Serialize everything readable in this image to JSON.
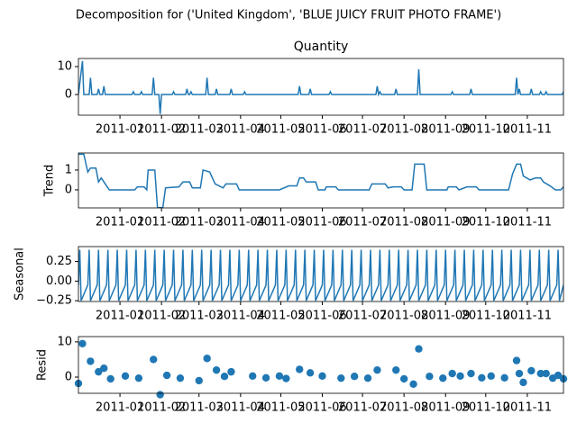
{
  "title": "Decomposition for ('United Kingdom', 'BLUE JUICY FRUIT PHOTO FRAME')",
  "chart_data": [
    {
      "type": "line",
      "title": "Quantity",
      "color": "#1f77b4",
      "xlim": [
        "2010-12-01",
        "2011-11-28"
      ],
      "xticks": [
        {
          "value": "2011-01-01",
          "label": "2011-01"
        },
        {
          "value": "2011-02-01",
          "label": "2011-02"
        },
        {
          "value": "2011-03-01",
          "label": "2011-03"
        },
        {
          "value": "2011-04-01",
          "label": "2011-04"
        },
        {
          "value": "2011-05-01",
          "label": "2011-05"
        },
        {
          "value": "2011-06-01",
          "label": "2011-06"
        },
        {
          "value": "2011-07-01",
          "label": "2011-07"
        },
        {
          "value": "2011-08-01",
          "label": "2011-08"
        },
        {
          "value": "2011-09-01",
          "label": "2011-09"
        },
        {
          "value": "2011-10-01",
          "label": "2011-10"
        },
        {
          "value": "2011-11-01",
          "label": "2011-11"
        }
      ],
      "ylim": [
        -7.4,
        12.9
      ],
      "yticks": [
        0,
        10
      ],
      "x": [
        "2010-12-01",
        "2010-12-04",
        "2010-12-05",
        "2010-12-09",
        "2010-12-10",
        "2010-12-11",
        "2010-12-15",
        "2010-12-16",
        "2010-12-17",
        "2010-12-19",
        "2010-12-20",
        "2010-12-21",
        "2011-01-10",
        "2011-01-11",
        "2011-01-12",
        "2011-01-16",
        "2011-01-17",
        "2011-01-18",
        "2011-01-25",
        "2011-01-26",
        "2011-01-27",
        "2011-01-30",
        "2011-01-31",
        "2011-02-01",
        "2011-02-09",
        "2011-02-10",
        "2011-02-11",
        "2011-02-19",
        "2011-02-20",
        "2011-02-21",
        "2011-02-22",
        "2011-02-23",
        "2011-02-24",
        "2011-03-06",
        "2011-03-07",
        "2011-03-08",
        "2011-03-13",
        "2011-03-14",
        "2011-03-15",
        "2011-03-24",
        "2011-03-25",
        "2011-03-26",
        "2011-04-03",
        "2011-04-04",
        "2011-04-05",
        "2011-05-14",
        "2011-05-15",
        "2011-05-16",
        "2011-05-22",
        "2011-05-23",
        "2011-05-24",
        "2011-06-06",
        "2011-06-07",
        "2011-06-08",
        "2011-07-11",
        "2011-07-12",
        "2011-07-13",
        "2011-07-14",
        "2011-07-15",
        "2011-07-25",
        "2011-07-26",
        "2011-07-27",
        "2011-08-11",
        "2011-08-12",
        "2011-08-13",
        "2011-09-05",
        "2011-09-06",
        "2011-09-07",
        "2011-09-19",
        "2011-09-20",
        "2011-09-21",
        "2011-10-23",
        "2011-10-24",
        "2011-10-25",
        "2011-10-26",
        "2011-10-27",
        "2011-11-03",
        "2011-11-04",
        "2011-11-05",
        "2011-11-10",
        "2011-11-11",
        "2011-11-12",
        "2011-11-14",
        "2011-11-15",
        "2011-11-16",
        "2011-11-27",
        "2011-11-28"
      ],
      "values": [
        0,
        12,
        0,
        0,
        6,
        0,
        0,
        2,
        0,
        0,
        3,
        0,
        0,
        1,
        0,
        0,
        1,
        0,
        0,
        6,
        0,
        0,
        -7,
        0,
        0,
        1,
        0,
        0,
        2,
        0,
        0,
        1,
        0,
        0,
        6,
        0,
        0,
        2,
        0,
        0,
        2,
        0,
        0,
        1,
        0,
        0,
        3,
        0,
        0,
        2,
        0,
        0,
        1,
        0,
        0,
        3,
        0,
        1,
        0,
        0,
        2,
        0,
        0,
        9,
        0,
        0,
        1,
        0,
        0,
        2,
        0,
        0,
        6,
        0,
        2,
        0,
        0,
        2,
        0,
        0,
        1,
        0,
        0,
        1,
        0,
        0,
        1
      ]
    },
    {
      "type": "line",
      "ylabel": "Trend",
      "color": "#1f77b4",
      "xlim": [
        "2010-12-01",
        "2011-11-28"
      ],
      "xticks": [
        {
          "value": "2011-01-01",
          "label": "2011-01"
        },
        {
          "value": "2011-02-01",
          "label": "2011-02"
        },
        {
          "value": "2011-03-01",
          "label": "2011-03"
        },
        {
          "value": "2011-04-01",
          "label": "2011-04"
        },
        {
          "value": "2011-05-01",
          "label": "2011-05"
        },
        {
          "value": "2011-06-01",
          "label": "2011-06"
        },
        {
          "value": "2011-07-01",
          "label": "2011-07"
        },
        {
          "value": "2011-08-01",
          "label": "2011-08"
        },
        {
          "value": "2011-09-01",
          "label": "2011-09"
        },
        {
          "value": "2011-10-01",
          "label": "2011-10"
        },
        {
          "value": "2011-11-01",
          "label": "2011-11"
        }
      ],
      "ylim": [
        -0.91,
        1.86
      ],
      "yticks": [
        0,
        1
      ],
      "x": [
        "2010-12-01",
        "2010-12-05",
        "2010-12-08",
        "2010-12-10",
        "2010-12-14",
        "2010-12-16",
        "2010-12-18",
        "2010-12-21",
        "2010-12-24",
        "2011-01-12",
        "2011-01-14",
        "2011-01-19",
        "2011-01-21",
        "2011-01-22",
        "2011-01-27",
        "2011-01-29",
        "2011-02-02",
        "2011-02-04",
        "2011-02-14",
        "2011-02-17",
        "2011-02-22",
        "2011-02-24",
        "2011-03-02",
        "2011-03-04",
        "2011-03-09",
        "2011-03-13",
        "2011-03-19",
        "2011-03-21",
        "2011-03-29",
        "2011-03-31",
        "2011-04-30",
        "2011-05-07",
        "2011-05-13",
        "2011-05-15",
        "2011-05-18",
        "2011-05-20",
        "2011-05-27",
        "2011-05-29",
        "2011-06-03",
        "2011-06-04",
        "2011-06-11",
        "2011-06-13",
        "2011-07-06",
        "2011-07-08",
        "2011-07-18",
        "2011-07-20",
        "2011-07-24",
        "2011-07-30",
        "2011-08-01",
        "2011-08-07",
        "2011-08-09",
        "2011-08-16",
        "2011-08-18",
        "2011-09-02",
        "2011-09-03",
        "2011-09-09",
        "2011-09-11",
        "2011-09-17",
        "2011-09-24",
        "2011-09-26",
        "2011-10-18",
        "2011-10-21",
        "2011-10-24",
        "2011-10-27",
        "2011-10-29",
        "2011-11-03",
        "2011-11-07",
        "2011-11-11",
        "2011-11-13",
        "2011-11-18",
        "2011-11-22",
        "2011-11-26",
        "2011-11-28"
      ],
      "values": [
        1.8,
        1.8,
        0.9,
        1.1,
        1.1,
        0.4,
        0.6,
        0.3,
        0,
        0,
        0.15,
        0.15,
        0,
        1.0,
        1.0,
        -0.9,
        -0.9,
        0.1,
        0.15,
        0.4,
        0.4,
        0.1,
        0.1,
        1.0,
        0.9,
        0.3,
        0.1,
        0.3,
        0.3,
        0,
        0,
        0.2,
        0.2,
        0.6,
        0.6,
        0.4,
        0.4,
        0,
        0,
        0.15,
        0.15,
        0,
        0,
        0.3,
        0.3,
        0.1,
        0.15,
        0.15,
        0,
        0,
        1.3,
        1.3,
        0,
        0,
        0.15,
        0.15,
        0,
        0.15,
        0.15,
        0,
        0,
        0.8,
        1.3,
        1.3,
        0.7,
        0.5,
        0.6,
        0.6,
        0.4,
        0.2,
        0,
        0,
        0.15
      ]
    },
    {
      "type": "line",
      "ylabel": "Seasonal",
      "color": "#1f77b4",
      "xlim": [
        "2010-12-01",
        "2011-11-28"
      ],
      "xticks": [
        {
          "value": "2011-01-01",
          "label": "2011-01"
        },
        {
          "value": "2011-02-01",
          "label": "2011-02"
        },
        {
          "value": "2011-03-01",
          "label": "2011-03"
        },
        {
          "value": "2011-04-01",
          "label": "2011-04"
        },
        {
          "value": "2011-05-01",
          "label": "2011-05"
        },
        {
          "value": "2011-06-01",
          "label": "2011-06"
        },
        {
          "value": "2011-07-01",
          "label": "2011-07"
        },
        {
          "value": "2011-08-01",
          "label": "2011-08"
        },
        {
          "value": "2011-09-01",
          "label": "2011-09"
        },
        {
          "value": "2011-10-01",
          "label": "2011-10"
        },
        {
          "value": "2011-11-01",
          "label": "2011-11"
        }
      ],
      "ylim": [
        -0.26,
        0.44
      ],
      "yticks": [
        {
          "value": -0.25,
          "label": "−0.25"
        },
        {
          "value": 0,
          "label": "0.00"
        },
        0.25
      ],
      "x": [
        "2010-12-01",
        "2010-12-02",
        "2010-12-03",
        "2010-12-08",
        "2010-12-09",
        "2010-12-10",
        "2010-12-15",
        "2010-12-16",
        "2010-12-17",
        "2010-12-22",
        "2010-12-23",
        "2010-12-24",
        "2010-12-29",
        "2010-12-30",
        "2010-12-31",
        "2011-01-05",
        "2011-01-06",
        "2011-01-07",
        "2011-01-12",
        "2011-01-13",
        "2011-01-14",
        "2011-01-19",
        "2011-01-20",
        "2011-01-21",
        "2011-01-26",
        "2011-01-27",
        "2011-01-28",
        "2011-02-02",
        "2011-02-03",
        "2011-02-04",
        "2011-02-09",
        "2011-02-10",
        "2011-02-11",
        "2011-02-16",
        "2011-02-17",
        "2011-02-18",
        "2011-02-23",
        "2011-02-24",
        "2011-02-25",
        "2011-03-02",
        "2011-03-03",
        "2011-03-04",
        "2011-03-09",
        "2011-03-10",
        "2011-03-11",
        "2011-03-16",
        "2011-03-17",
        "2011-03-18",
        "2011-03-23",
        "2011-03-24",
        "2011-03-25",
        "2011-03-30",
        "2011-03-31",
        "2011-04-01",
        "2011-04-06",
        "2011-04-07",
        "2011-04-08",
        "2011-04-13",
        "2011-04-14",
        "2011-04-15",
        "2011-04-20",
        "2011-04-21",
        "2011-04-22",
        "2011-04-27",
        "2011-04-28",
        "2011-04-29",
        "2011-05-04",
        "2011-05-05",
        "2011-05-06",
        "2011-05-11",
        "2011-05-12",
        "2011-05-13",
        "2011-05-18",
        "2011-05-19",
        "2011-05-20",
        "2011-05-25",
        "2011-05-26",
        "2011-05-27",
        "2011-06-01",
        "2011-06-02",
        "2011-06-03",
        "2011-06-08",
        "2011-06-09",
        "2011-06-10",
        "2011-06-15",
        "2011-06-16",
        "2011-06-17",
        "2011-06-22",
        "2011-06-23",
        "2011-06-24",
        "2011-06-29",
        "2011-06-30",
        "2011-07-01",
        "2011-07-06",
        "2011-07-07",
        "2011-07-08",
        "2011-07-13",
        "2011-07-14",
        "2011-07-15",
        "2011-07-20",
        "2011-07-21",
        "2011-07-22",
        "2011-07-27",
        "2011-07-28",
        "2011-07-29",
        "2011-08-03",
        "2011-08-04",
        "2011-08-05",
        "2011-08-10",
        "2011-08-11",
        "2011-08-12",
        "2011-08-17",
        "2011-08-18",
        "2011-08-19",
        "2011-08-24",
        "2011-08-25",
        "2011-08-26",
        "2011-08-31",
        "2011-09-01",
        "2011-09-02",
        "2011-09-07",
        "2011-09-08",
        "2011-09-09",
        "2011-09-14",
        "2011-09-15",
        "2011-09-16",
        "2011-09-21",
        "2011-09-22",
        "2011-09-23",
        "2011-09-28",
        "2011-09-29",
        "2011-09-30",
        "2011-10-05",
        "2011-10-06",
        "2011-10-07",
        "2011-10-12",
        "2011-10-13",
        "2011-10-14",
        "2011-10-19",
        "2011-10-20",
        "2011-10-21",
        "2011-10-26",
        "2011-10-27",
        "2011-10-28",
        "2011-11-02",
        "2011-11-03",
        "2011-11-04",
        "2011-11-09",
        "2011-11-10",
        "2011-11-11",
        "2011-11-16",
        "2011-11-17",
        "2011-11-18",
        "2011-11-23",
        "2011-11-24",
        "2011-11-25",
        "2011-11-28"
      ],
      "values": [
        -0.05,
        0.4,
        -0.25,
        -0.05,
        0.4,
        -0.25,
        -0.05,
        0.4,
        -0.25,
        -0.05,
        0.4,
        -0.25,
        -0.05,
        0.4,
        -0.25,
        -0.05,
        0.4,
        -0.25,
        -0.05,
        0.4,
        -0.25,
        -0.05,
        0.4,
        -0.25,
        -0.05,
        0.4,
        -0.25,
        -0.05,
        0.4,
        -0.25,
        -0.05,
        0.4,
        -0.25,
        -0.05,
        0.4,
        -0.25,
        -0.05,
        0.4,
        -0.25,
        -0.05,
        0.4,
        -0.25,
        -0.05,
        0.4,
        -0.25,
        -0.05,
        0.4,
        -0.25,
        -0.05,
        0.4,
        -0.25,
        -0.05,
        0.4,
        -0.25,
        -0.05,
        0.4,
        -0.25,
        -0.05,
        0.4,
        -0.25,
        -0.05,
        0.4,
        -0.25,
        -0.05,
        0.4,
        -0.25,
        -0.05,
        0.4,
        -0.25,
        -0.05,
        0.4,
        -0.25,
        -0.05,
        0.4,
        -0.25,
        -0.05,
        0.4,
        -0.25,
        -0.05,
        0.4,
        -0.25,
        -0.05,
        0.4,
        -0.25,
        -0.05,
        0.4,
        -0.25,
        -0.05,
        0.4,
        -0.25,
        -0.05,
        0.4,
        -0.25,
        -0.05,
        0.4,
        -0.25,
        -0.05,
        0.4,
        -0.25,
        -0.05,
        0.4,
        -0.25,
        -0.05,
        0.4,
        -0.25,
        -0.05,
        0.4,
        -0.25,
        -0.05,
        0.4,
        -0.25,
        -0.05,
        0.4,
        -0.25,
        -0.05,
        0.4,
        -0.25,
        -0.05,
        0.4,
        -0.25,
        -0.05,
        0.4,
        -0.25,
        -0.05,
        0.4,
        -0.25,
        -0.05,
        0.4,
        -0.25,
        -0.05,
        0.4,
        -0.25,
        -0.05,
        0.4,
        -0.25,
        -0.05,
        0.4,
        -0.25,
        -0.05,
        0.4,
        -0.25,
        -0.05,
        0.4,
        -0.25,
        -0.05,
        0.4,
        -0.25,
        -0.05,
        0.4,
        -0.25,
        -0.05,
        0.4,
        -0.25,
        -0.05,
        0.4,
        -0.25,
        -0.05
      ]
    },
    {
      "type": "scatter",
      "ylabel": "Resid",
      "color": "#1f77b4",
      "xlim": [
        "2010-12-01",
        "2011-11-28"
      ],
      "xticks": [
        {
          "value": "2011-01-01",
          "label": "2011-01"
        },
        {
          "value": "2011-02-01",
          "label": "2011-02"
        },
        {
          "value": "2011-03-01",
          "label": "2011-03"
        },
        {
          "value": "2011-04-01",
          "label": "2011-04"
        },
        {
          "value": "2011-05-01",
          "label": "2011-05"
        },
        {
          "value": "2011-06-01",
          "label": "2011-06"
        },
        {
          "value": "2011-07-01",
          "label": "2011-07"
        },
        {
          "value": "2011-08-01",
          "label": "2011-08"
        },
        {
          "value": "2011-09-01",
          "label": "2011-09"
        },
        {
          "value": "2011-10-01",
          "label": "2011-10"
        },
        {
          "value": "2011-11-01",
          "label": "2011-11"
        }
      ],
      "ylim": [
        -4.6,
        11.5
      ],
      "yticks": [
        0,
        10
      ],
      "x": [
        "2010-12-01",
        "2010-12-04",
        "2010-12-10",
        "2010-12-16",
        "2010-12-20",
        "2010-12-25",
        "2011-01-05",
        "2011-01-15",
        "2011-01-26",
        "2011-01-31",
        "2011-02-05",
        "2011-02-15",
        "2011-03-01",
        "2011-03-07",
        "2011-03-14",
        "2011-03-20",
        "2011-03-25",
        "2011-04-10",
        "2011-04-20",
        "2011-04-30",
        "2011-05-05",
        "2011-05-15",
        "2011-05-23",
        "2011-06-01",
        "2011-06-15",
        "2011-06-25",
        "2011-07-05",
        "2011-07-12",
        "2011-07-26",
        "2011-08-01",
        "2011-08-08",
        "2011-08-12",
        "2011-08-20",
        "2011-08-30",
        "2011-09-06",
        "2011-09-12",
        "2011-09-20",
        "2011-09-28",
        "2011-10-05",
        "2011-10-15",
        "2011-10-24",
        "2011-10-26",
        "2011-10-29",
        "2011-11-04",
        "2011-11-11",
        "2011-11-15",
        "2011-11-20",
        "2011-11-24",
        "2011-11-28"
      ],
      "values": [
        -1.8,
        9.5,
        4.5,
        1.5,
        2.5,
        -0.5,
        0.3,
        -0.3,
        5,
        -5,
        0.5,
        -0.3,
        -1,
        5.3,
        2,
        0.2,
        1.5,
        0.3,
        -0.2,
        0.3,
        -0.4,
        2.2,
        1.2,
        0.3,
        -0.3,
        0.2,
        -0.3,
        2,
        2,
        -0.5,
        -2,
        8,
        0.2,
        -0.3,
        1,
        0.3,
        1,
        -0.2,
        0.3,
        -0.2,
        4.7,
        1,
        -1.5,
        1.8,
        1,
        1,
        -0.3,
        0.5,
        -0.5
      ]
    }
  ]
}
